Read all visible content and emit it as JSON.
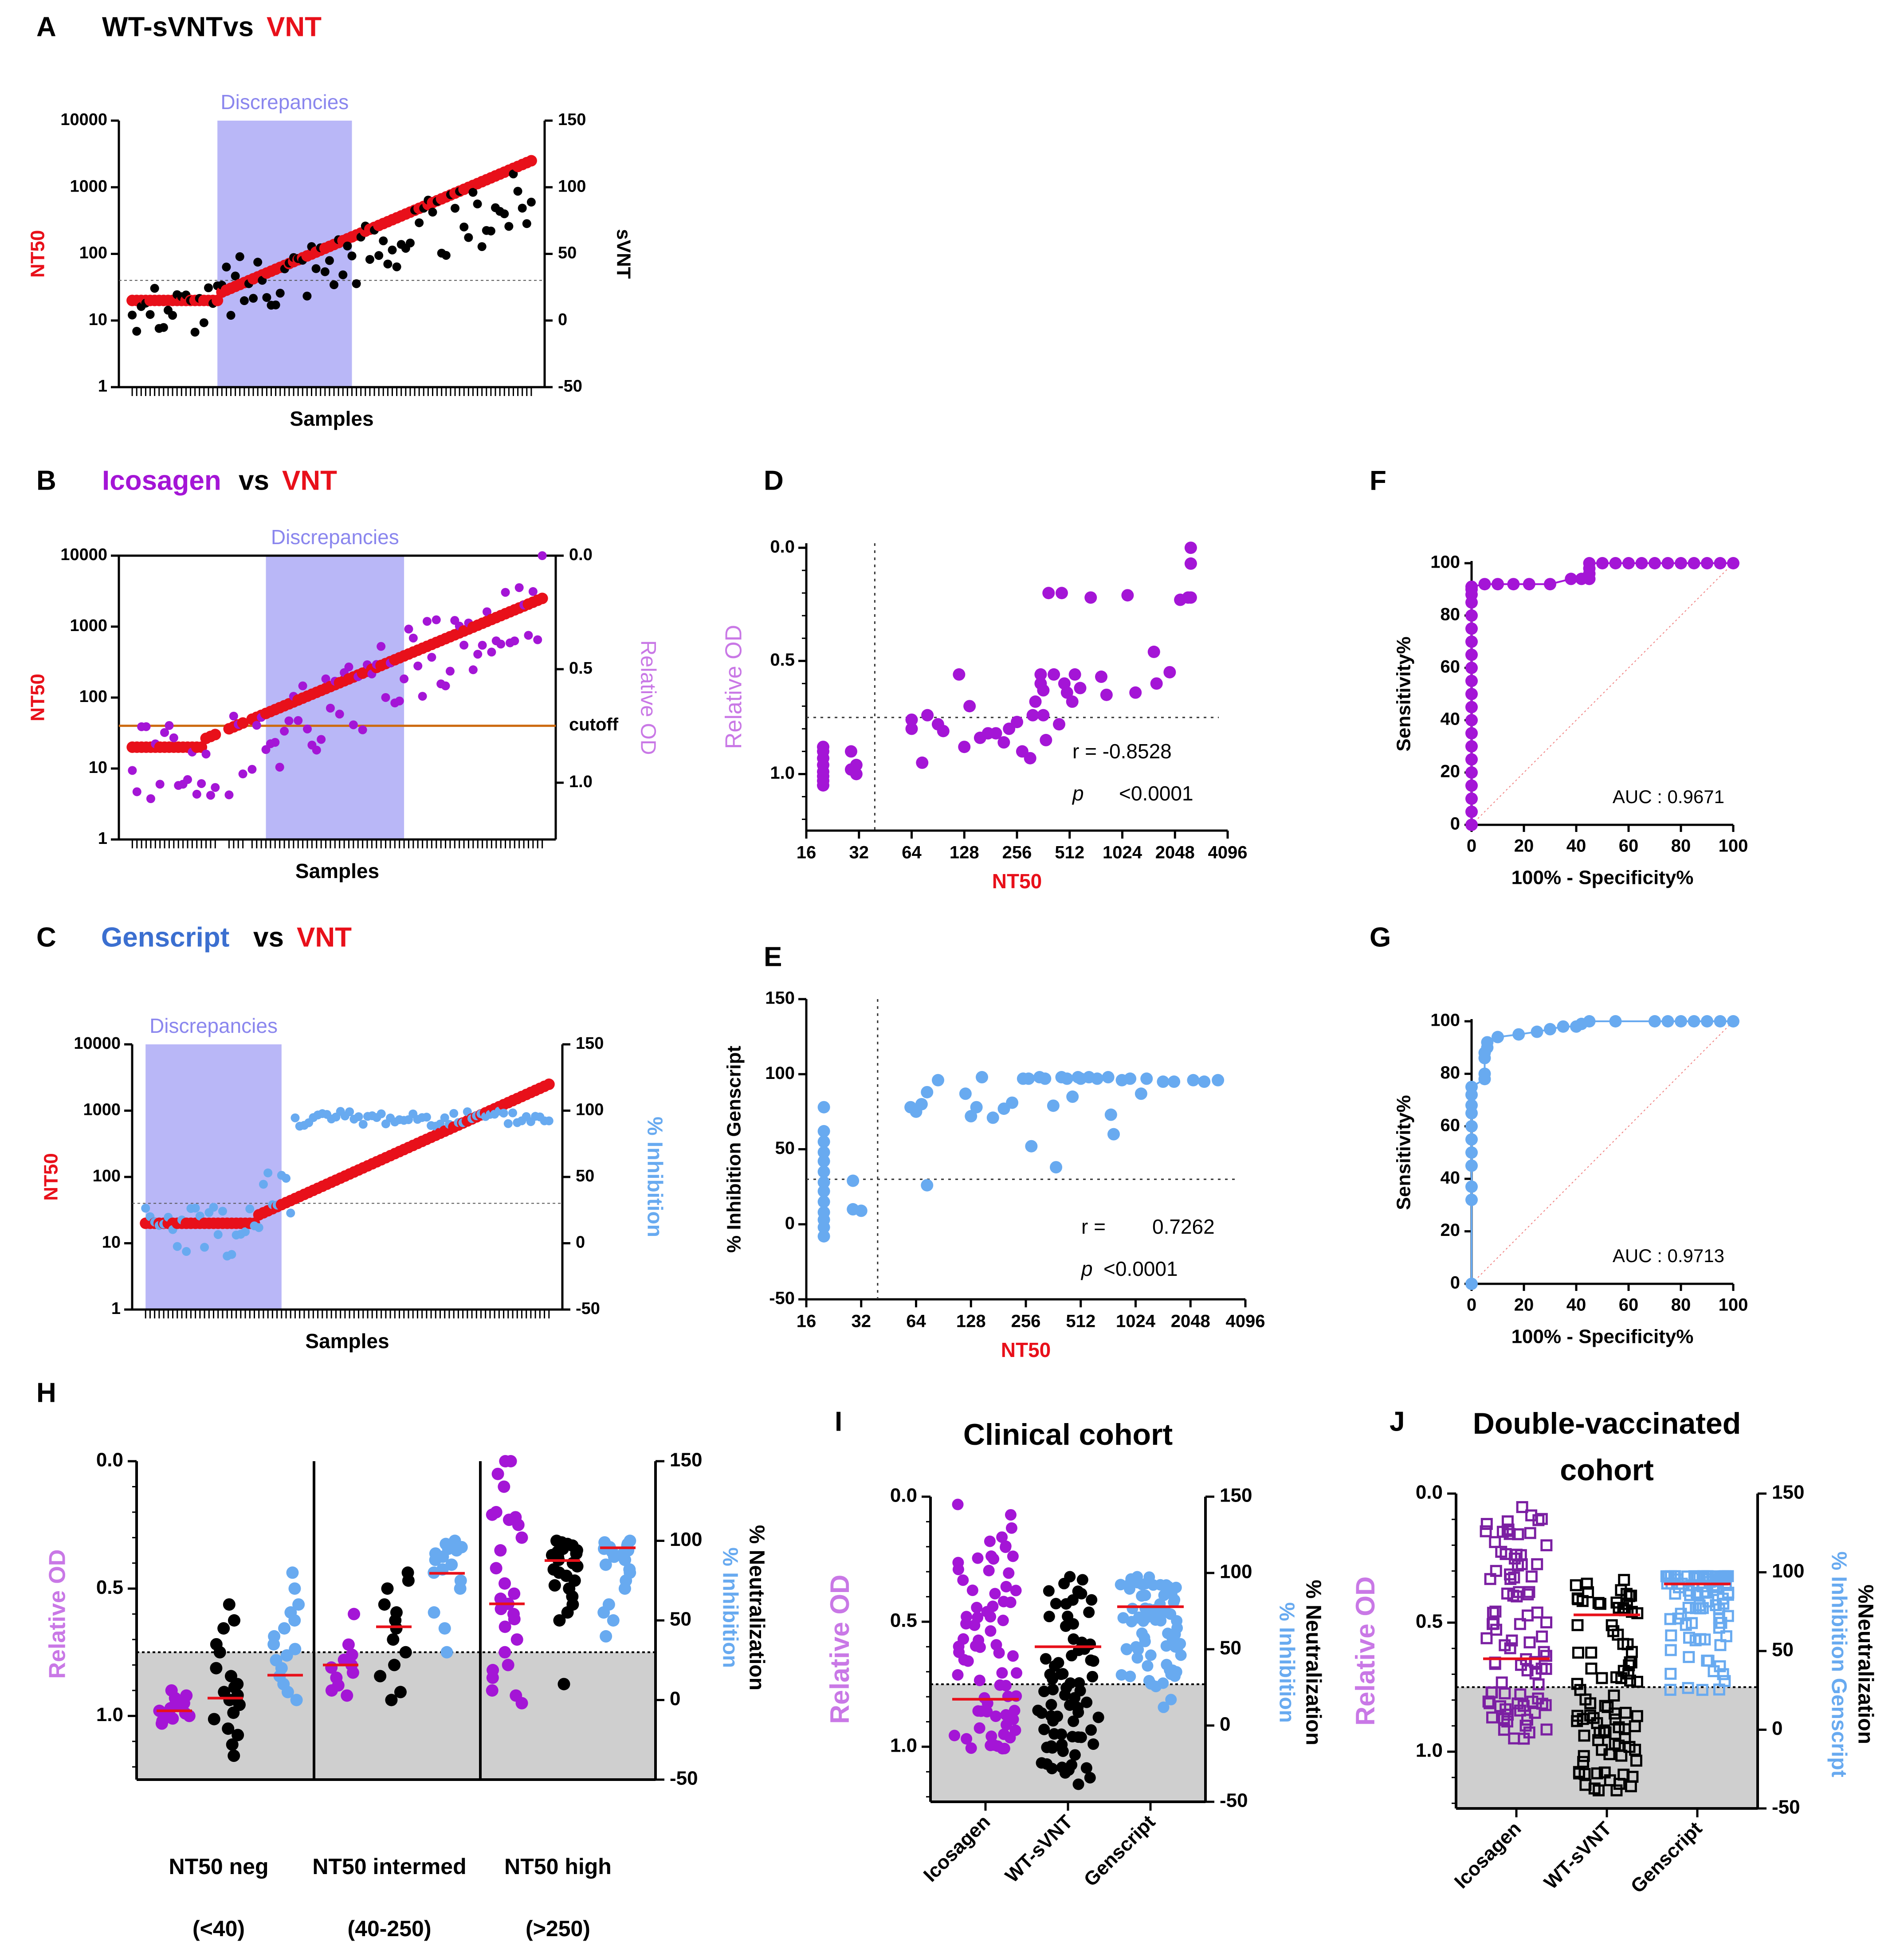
{
  "colors": {
    "red": "#e8101a",
    "black": "#000000",
    "purple": "#a415d6",
    "dark_purple": "#7b1fa2",
    "blue": "#4b8fe0",
    "light_blue": "#68aaf0",
    "title_blue": "#3b6fd0",
    "band": "#b9b7f7",
    "band_text": "#8a86ee",
    "gray": "#cfcfcf",
    "orange": "#cc6a10"
  },
  "chart_data": [
    {
      "id": "A",
      "type": "scatter",
      "letter": "A",
      "title": [
        {
          "text": "WT-sVNT",
          "color": "black"
        },
        {
          "text": "vs",
          "color": "black"
        },
        {
          "text": "VNT",
          "color": "red"
        }
      ],
      "band_label": "Discrepancies",
      "band_samples": [
        20,
        50
      ],
      "xlabel": "Samples",
      "ylabel_left": "NT50",
      "ylabel_right": "sVNT",
      "y_left_ticks": [
        "1",
        "10",
        "100",
        "1000",
        "10000"
      ],
      "y_left_range_log10": [
        0,
        4
      ],
      "y_right_ticks": [
        "-50",
        "0",
        "50",
        "100",
        "150"
      ],
      "y_right_range": [
        -50,
        150
      ],
      "cutoff_nt50": 40,
      "n_samples": 90
    },
    {
      "id": "B",
      "type": "scatter",
      "letter": "B",
      "title": [
        {
          "text": "Icosagen",
          "color": "purple"
        },
        {
          "text": "vs",
          "color": "black"
        },
        {
          "text": "VNT",
          "color": "red"
        }
      ],
      "band_label": "Discrepancies",
      "band_samples": [
        30,
        60
      ],
      "xlabel": "Samples",
      "ylabel_left": "NT50",
      "ylabel_right": "Relative OD",
      "y_left_ticks": [
        "1",
        "10",
        "100",
        "1000",
        "10000"
      ],
      "y_left_range_log10": [
        0,
        4
      ],
      "y_right_ticks": [
        "0.0",
        "0.5",
        "1.0"
      ],
      "y_right_range": [
        0,
        1.25
      ],
      "y_right_reversed": true,
      "cutoff_label": "cutoff",
      "cutoff_nt50": 40,
      "n_samples": 90
    },
    {
      "id": "C",
      "type": "scatter",
      "letter": "C",
      "title": [
        {
          "text": "Genscript",
          "color": "title_blue"
        },
        {
          "text": "vs",
          "color": "black"
        },
        {
          "text": "VNT",
          "color": "red"
        }
      ],
      "band_label": "Discrepancies",
      "band_samples": [
        1,
        31
      ],
      "xlabel": "Samples",
      "ylabel_left": "NT50",
      "ylabel_right": "% Inhibition",
      "y_left_ticks": [
        "1",
        "10",
        "100",
        "1000",
        "10000"
      ],
      "y_left_range_log10": [
        0,
        4
      ],
      "y_right_ticks": [
        "-50",
        "0",
        "50",
        "100",
        "150"
      ],
      "y_right_range": [
        -50,
        150
      ],
      "cutoff_nt50": 40,
      "n_samples": 90
    },
    {
      "id": "D",
      "type": "scatter",
      "letter": "D",
      "xlabel": "NT50",
      "ylabel": "Relative OD",
      "x_ticks": [
        "16",
        "32",
        "64",
        "128",
        "256",
        "512",
        "1024",
        "2048",
        "4096"
      ],
      "y_ticks": [
        "0.0",
        "0.5",
        "1.0"
      ],
      "y_range": [
        -0.02,
        1.25
      ],
      "y_reversed": true,
      "x_cut_log2": 5.3,
      "y_cut": 0.75,
      "r_label": "r = -0.8528",
      "p_label": "p",
      "p_value": "<0.0001",
      "points": [
        [
          4.32,
          0.88
        ],
        [
          4.32,
          0.9
        ],
        [
          4.32,
          0.93
        ],
        [
          4.32,
          0.96
        ],
        [
          4.32,
          0.99
        ],
        [
          4.32,
          1.01
        ],
        [
          4.32,
          1.03
        ],
        [
          4.32,
          1.05
        ],
        [
          4.85,
          0.9
        ],
        [
          4.85,
          0.98
        ],
        [
          4.95,
          1.0
        ],
        [
          4.95,
          0.96
        ],
        [
          6.0,
          0.76
        ],
        [
          6.0,
          0.8
        ],
        [
          6.2,
          0.95
        ],
        [
          6.3,
          0.74
        ],
        [
          6.5,
          0.78
        ],
        [
          6.6,
          0.81
        ],
        [
          6.9,
          0.56
        ],
        [
          7.0,
          0.88
        ],
        [
          7.1,
          0.7
        ],
        [
          7.3,
          0.84
        ],
        [
          7.45,
          0.82
        ],
        [
          7.6,
          0.82
        ],
        [
          7.75,
          0.86
        ],
        [
          7.85,
          0.8
        ],
        [
          8.0,
          0.77
        ],
        [
          8.1,
          0.9
        ],
        [
          8.25,
          0.93
        ],
        [
          8.3,
          0.74
        ],
        [
          8.35,
          0.68
        ],
        [
          8.45,
          0.6
        ],
        [
          8.45,
          0.56
        ],
        [
          8.5,
          0.63
        ],
        [
          8.5,
          0.74
        ],
        [
          8.55,
          0.85
        ],
        [
          8.6,
          0.2
        ],
        [
          8.7,
          0.56
        ],
        [
          8.8,
          0.78
        ],
        [
          8.85,
          0.2
        ],
        [
          8.9,
          0.6
        ],
        [
          8.95,
          0.64
        ],
        [
          9.05,
          0.68
        ],
        [
          9.1,
          0.56
        ],
        [
          9.2,
          0.62
        ],
        [
          9.4,
          0.22
        ],
        [
          9.6,
          0.57
        ],
        [
          9.7,
          0.65
        ],
        [
          10.1,
          0.21
        ],
        [
          10.25,
          0.64
        ],
        [
          10.6,
          0.46
        ],
        [
          10.65,
          0.6
        ],
        [
          10.9,
          0.55
        ],
        [
          11.1,
          0.23
        ],
        [
          11.25,
          0.22
        ],
        [
          11.3,
          0.22
        ],
        [
          11.3,
          0.0
        ],
        [
          11.3,
          0.07
        ]
      ]
    },
    {
      "id": "E",
      "type": "scatter",
      "letter": "E",
      "xlabel": "NT50",
      "ylabel": "% Inhibition Genscript",
      "x_ticks": [
        "16",
        "32",
        "64",
        "128",
        "256",
        "512",
        "1024",
        "2048",
        "4096"
      ],
      "y_ticks": [
        "-50",
        "0",
        "50",
        "100",
        "150"
      ],
      "y_range": [
        -50,
        150
      ],
      "x_cut_log2": 5.3,
      "y_cut": 30,
      "r_label": "r =",
      "r_value": "0.7262",
      "p_label": "p",
      "p_value": "<0.0001",
      "points": [
        [
          4.32,
          78
        ],
        [
          4.32,
          62
        ],
        [
          4.32,
          55
        ],
        [
          4.32,
          48
        ],
        [
          4.32,
          42
        ],
        [
          4.32,
          35
        ],
        [
          4.32,
          28
        ],
        [
          4.32,
          22
        ],
        [
          4.32,
          15
        ],
        [
          4.32,
          8
        ],
        [
          4.32,
          3
        ],
        [
          4.32,
          -8
        ],
        [
          4.32,
          -2
        ],
        [
          4.85,
          29
        ],
        [
          4.85,
          10
        ],
        [
          5.0,
          9
        ],
        [
          5.9,
          78
        ],
        [
          6.1,
          80
        ],
        [
          6.0,
          75
        ],
        [
          6.2,
          88
        ],
        [
          6.4,
          96
        ],
        [
          6.2,
          26
        ],
        [
          6.9,
          87
        ],
        [
          7.0,
          72
        ],
        [
          7.1,
          78
        ],
        [
          7.2,
          98
        ],
        [
          7.4,
          71
        ],
        [
          7.6,
          77
        ],
        [
          7.75,
          81
        ],
        [
          7.95,
          97
        ],
        [
          8.05,
          97
        ],
        [
          8.1,
          52
        ],
        [
          8.25,
          98
        ],
        [
          8.35,
          97
        ],
        [
          8.5,
          79
        ],
        [
          8.55,
          38
        ],
        [
          8.65,
          98
        ],
        [
          8.75,
          97
        ],
        [
          8.85,
          85
        ],
        [
          8.95,
          98
        ],
        [
          9.0,
          97
        ],
        [
          9.15,
          98
        ],
        [
          9.3,
          97
        ],
        [
          9.5,
          98
        ],
        [
          9.55,
          73
        ],
        [
          9.6,
          60
        ],
        [
          9.75,
          96
        ],
        [
          9.9,
          97
        ],
        [
          10.1,
          87
        ],
        [
          10.2,
          97
        ],
        [
          10.5,
          95
        ],
        [
          10.7,
          95
        ],
        [
          11.05,
          96
        ],
        [
          11.25,
          95
        ],
        [
          11.5,
          96
        ]
      ]
    },
    {
      "id": "F",
      "type": "line",
      "letter": "F",
      "xlabel": "100% - Specificity%",
      "ylabel": "Sensitivity%",
      "x_ticks": [
        "0",
        "20",
        "40",
        "60",
        "80",
        "100"
      ],
      "y_ticks": [
        "0",
        "20",
        "40",
        "60",
        "80",
        "100"
      ],
      "auc_label": "AUC : 0.9671",
      "roc": [
        [
          0,
          0
        ],
        [
          0,
          5
        ],
        [
          0,
          10
        ],
        [
          0,
          15
        ],
        [
          0,
          20
        ],
        [
          0,
          25
        ],
        [
          0,
          30
        ],
        [
          0,
          35
        ],
        [
          0,
          40
        ],
        [
          0,
          45
        ],
        [
          0,
          50
        ],
        [
          0,
          55
        ],
        [
          0,
          60
        ],
        [
          0,
          65
        ],
        [
          0,
          70
        ],
        [
          0,
          75
        ],
        [
          0,
          80
        ],
        [
          0,
          85
        ],
        [
          0,
          88
        ],
        [
          0,
          90
        ],
        [
          0,
          91
        ],
        [
          5,
          92
        ],
        [
          10,
          92
        ],
        [
          16,
          92
        ],
        [
          22,
          92
        ],
        [
          30,
          92
        ],
        [
          38,
          94
        ],
        [
          42,
          94
        ],
        [
          45,
          94
        ],
        [
          45,
          96
        ],
        [
          45,
          98
        ],
        [
          45,
          100
        ],
        [
          50,
          100
        ],
        [
          55,
          100
        ],
        [
          60,
          100
        ],
        [
          65,
          100
        ],
        [
          70,
          100
        ],
        [
          75,
          100
        ],
        [
          80,
          100
        ],
        [
          85,
          100
        ],
        [
          90,
          100
        ],
        [
          95,
          100
        ],
        [
          100,
          100
        ]
      ]
    },
    {
      "id": "G",
      "type": "line",
      "letter": "G",
      "xlabel": "100% - Specificity%",
      "ylabel": "Sensitivity%",
      "x_ticks": [
        "0",
        "20",
        "40",
        "60",
        "80",
        "100"
      ],
      "y_ticks": [
        "0",
        "20",
        "40",
        "60",
        "80",
        "100"
      ],
      "auc_label": "AUC : 0.9713",
      "roc": [
        [
          0,
          0
        ],
        [
          0,
          32
        ],
        [
          0,
          37
        ],
        [
          0,
          45
        ],
        [
          0,
          50
        ],
        [
          0,
          55
        ],
        [
          0,
          60
        ],
        [
          0,
          65
        ],
        [
          0,
          68
        ],
        [
          0,
          72
        ],
        [
          0,
          75
        ],
        [
          5,
          78
        ],
        [
          5,
          80
        ],
        [
          5,
          86
        ],
        [
          5,
          88
        ],
        [
          6,
          90
        ],
        [
          6,
          92
        ],
        [
          10,
          94
        ],
        [
          18,
          95
        ],
        [
          25,
          96
        ],
        [
          30,
          97
        ],
        [
          35,
          98
        ],
        [
          40,
          98
        ],
        [
          42,
          99
        ],
        [
          45,
          100
        ],
        [
          55,
          100
        ],
        [
          70,
          100
        ],
        [
          75,
          100
        ],
        [
          80,
          100
        ],
        [
          85,
          100
        ],
        [
          90,
          100
        ],
        [
          95,
          100
        ],
        [
          100,
          100
        ]
      ]
    },
    {
      "id": "H",
      "type": "scatter",
      "letter": "H",
      "ylabel_left": "Relative OD",
      "ylabel_right_1": "% Neutralization",
      "ylabel_right_2": "% Inhibition",
      "y_left_ticks": [
        "0.0",
        "0.5",
        "1.0"
      ],
      "y_right_ticks": [
        "-50",
        "0",
        "50",
        "100",
        "150"
      ],
      "groups": [
        {
          "label": "NT50 neg",
          "sublabel": "(<40)",
          "medians": [
            0.98,
            0.93,
            0.84
          ],
          "icosagen": [
            0.9,
            0.92,
            0.93,
            0.95,
            0.96,
            0.97,
            0.98,
            0.99,
            1.0,
            1.01,
            1.02,
            0.94,
            0.96,
            0.99,
            1.03
          ],
          "svnt": [
            60,
            50,
            45,
            35,
            30,
            20,
            15,
            10,
            8,
            5,
            3,
            0,
            -3,
            -8,
            -12,
            -18,
            -22,
            -28,
            -35
          ],
          "genscript": [
            80,
            70,
            60,
            55,
            50,
            45,
            40,
            35,
            32,
            28,
            25,
            20,
            15,
            10,
            5,
            0
          ]
        },
        {
          "label": "NT50 intermed",
          "sublabel": "(40-250)",
          "medians": [
            0.8,
            0.65,
            0.44
          ],
          "icosagen": [
            0.6,
            0.72,
            0.76,
            0.78,
            0.8,
            0.81,
            0.83,
            0.85,
            0.88,
            0.9,
            0.92
          ],
          "svnt": [
            80,
            75,
            70,
            60,
            55,
            50,
            45,
            38,
            30,
            22,
            15,
            5,
            0
          ],
          "genscript": [
            100,
            98,
            97,
            96,
            95,
            94,
            92,
            90,
            88,
            85,
            82,
            80,
            75,
            70,
            55,
            45,
            30
          ]
        },
        {
          "label": "NT50 high",
          "sublabel": "(>250)",
          "medians": [
            0.56,
            0.39,
            0.34
          ],
          "icosagen": [
            0.0,
            0.0,
            0.05,
            0.1,
            0.2,
            0.21,
            0.22,
            0.23,
            0.25,
            0.3,
            0.35,
            0.42,
            0.48,
            0.52,
            0.54,
            0.56,
            0.58,
            0.6,
            0.62,
            0.65,
            0.7,
            0.75,
            0.8,
            0.82,
            0.85,
            0.9,
            0.92,
            0.95
          ],
          "svnt": [
            100,
            99,
            98,
            97,
            96,
            95,
            94,
            93,
            92,
            91,
            90,
            88,
            86,
            84,
            82,
            80,
            78,
            75,
            72,
            70,
            65,
            60,
            55,
            50,
            10
          ],
          "genscript": [
            100,
            99,
            98,
            97,
            96,
            95,
            94,
            93,
            92,
            90,
            88,
            85,
            82,
            80,
            75,
            70,
            60,
            55,
            50,
            40
          ]
        }
      ]
    },
    {
      "id": "I",
      "type": "scatter",
      "letter": "I",
      "title": "Clinical cohort",
      "ylabel_left": "Relative OD",
      "ylabel_right_1": "% Neutralization",
      "ylabel_right_2": "% Inhibition",
      "y_left_ticks": [
        "0.0",
        "0.5",
        "1.0"
      ],
      "y_right_ticks": [
        "-50",
        "0",
        "50",
        "100",
        "150"
      ],
      "categories": [
        "Icosagen",
        "WT-sVNT",
        "Genscript"
      ],
      "medians": [
        0.81,
        0.6,
        0.44
      ]
    },
    {
      "id": "J",
      "type": "scatter",
      "letter": "J",
      "title_1": "Double-vaccinated",
      "title_2": "cohort",
      "ylabel_left": "Relative OD",
      "ylabel_right_1": "%Neutralization",
      "ylabel_right_2": "% Inhibition Genscript",
      "y_left_ticks": [
        "0.0",
        "0.5",
        "1.0"
      ],
      "y_right_ticks": [
        "-50",
        "0",
        "50",
        "100",
        "150"
      ],
      "categories": [
        "Icosagen",
        "WT-sVNT",
        "Genscript"
      ],
      "medians": [
        0.64,
        0.47,
        0.35
      ]
    }
  ]
}
